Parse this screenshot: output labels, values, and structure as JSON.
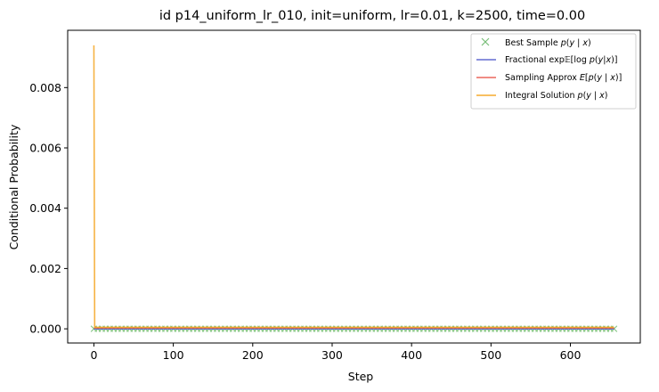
{
  "chart_data": {
    "type": "line",
    "title": "id p14_uniform_lr_010, init=uniform, lr=0.01, k=2500, time=0.00",
    "xlabel": "Step",
    "ylabel": "Conditional Probability",
    "xlim": [
      -33,
      688
    ],
    "ylim": [
      -0.00047,
      0.0099
    ],
    "x_ticks": [
      0,
      100,
      200,
      300,
      400,
      500,
      600
    ],
    "x_tick_labels": [
      "0",
      "100",
      "200",
      "300",
      "400",
      "500",
      "600"
    ],
    "y_ticks": [
      0,
      0.002,
      0.004,
      0.006,
      0.008
    ],
    "y_tick_labels": [
      "0.000",
      "0.002",
      "0.004",
      "0.006",
      "0.008"
    ],
    "grid": false,
    "legend_position": "top-right",
    "series": [
      {
        "name": "Best Sample p(y | x)",
        "kind": "marker-x",
        "color": "#3fa33f",
        "x_range": [
          0,
          655
        ],
        "x_step": 5,
        "y": 0
      },
      {
        "name": "Fractional exp E[log p(y|x)]",
        "kind": "line",
        "color": "#4a52c8",
        "x": [
          0,
          655
        ],
        "y": [
          0,
          0
        ]
      },
      {
        "name": "Sampling Approx E[p(y | x)]",
        "kind": "line",
        "color": "#e8554a",
        "x": [
          0,
          655
        ],
        "y": [
          3e-05,
          3e-05
        ]
      },
      {
        "name": "Integral Solution p(y | x)",
        "kind": "line",
        "color": "#f5a623",
        "x": [
          0,
          1,
          655
        ],
        "y": [
          0.0094,
          5e-05,
          5e-05
        ]
      }
    ]
  }
}
